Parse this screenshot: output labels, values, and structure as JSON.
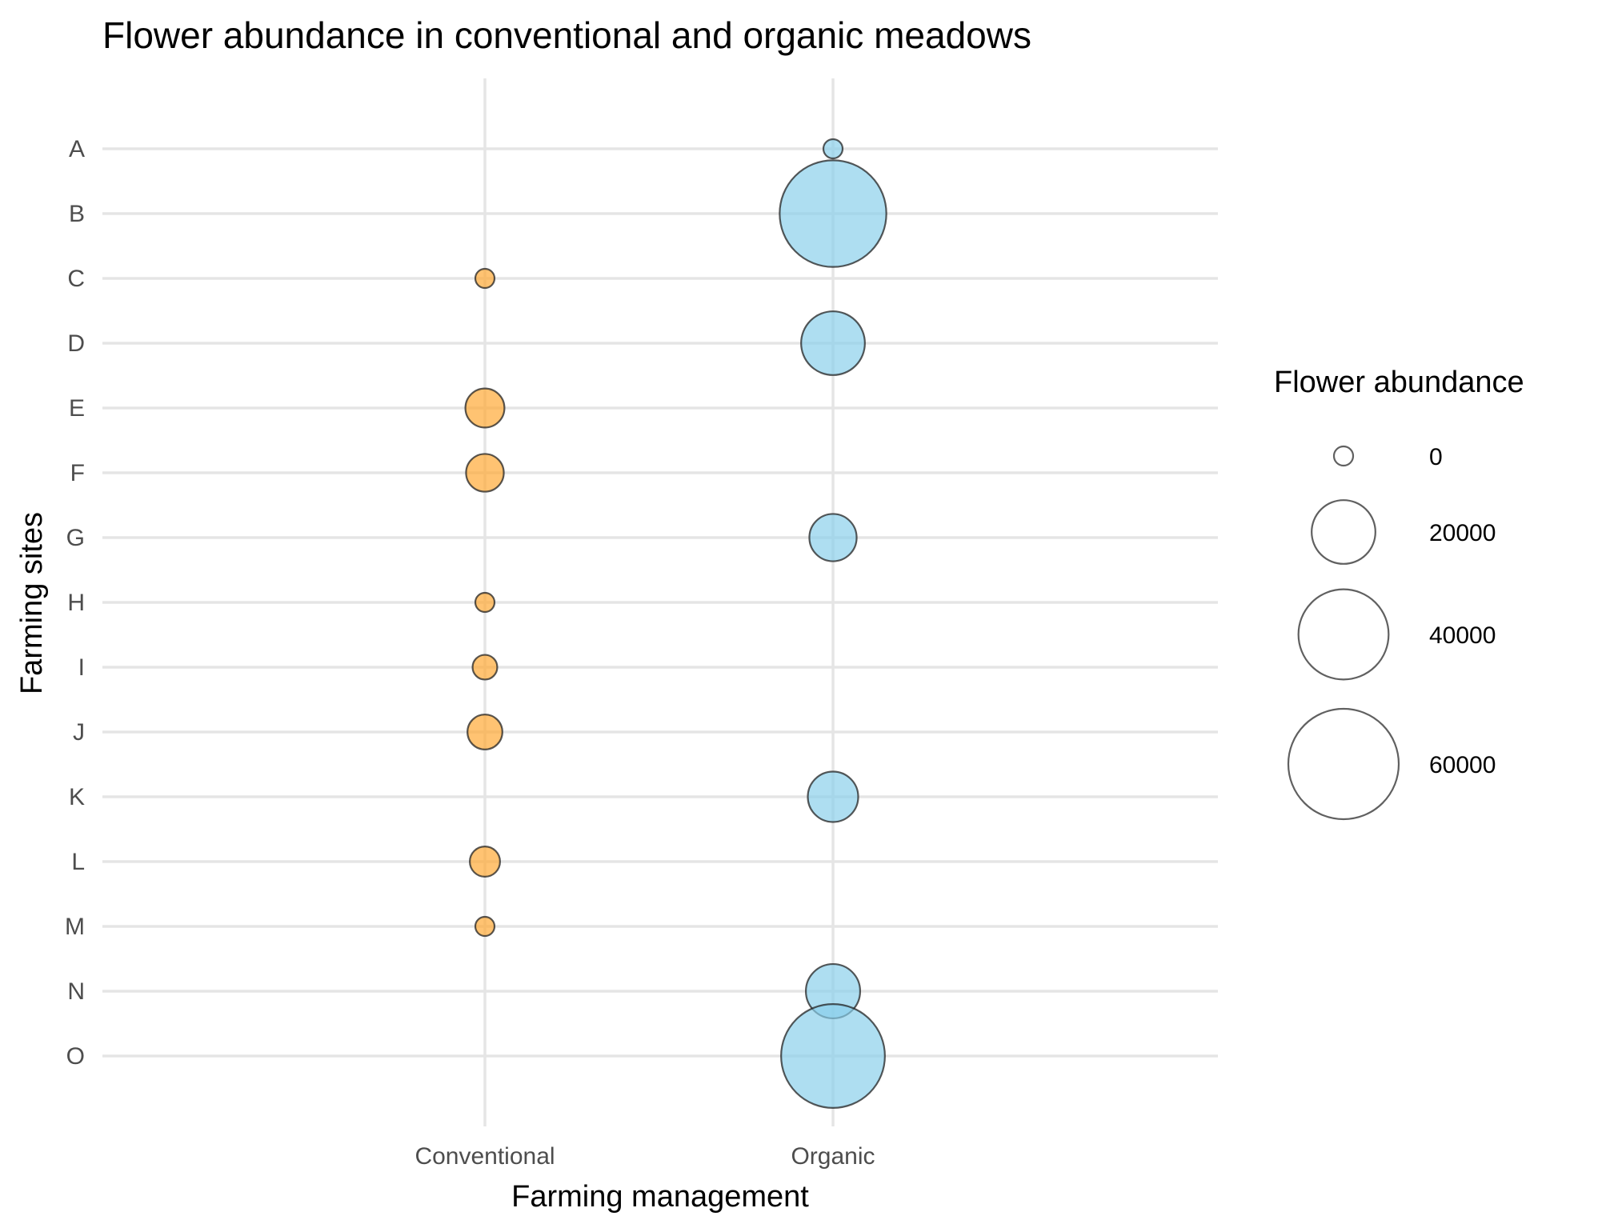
{
  "chart_data": {
    "type": "scatter",
    "title": "Flower abundance in conventional and organic meadows",
    "xlabel": "Farming management",
    "ylabel": "Farming sites",
    "x_categories": [
      "Conventional",
      "Organic"
    ],
    "y_categories": [
      "A",
      "B",
      "C",
      "D",
      "E",
      "F",
      "G",
      "H",
      "I",
      "J",
      "K",
      "L",
      "M",
      "N",
      "O"
    ],
    "size_variable": "Flower abundance",
    "colors": {
      "Conventional": "#ffa62f",
      "Organic": "#87ceeb",
      "point_outline": "#222222",
      "grid": "#e5e5e5"
    },
    "points": [
      {
        "site": "A",
        "management": "Organic",
        "abundance": 1200
      },
      {
        "site": "B",
        "management": "Organic",
        "abundance": 56000
      },
      {
        "site": "C",
        "management": "Conventional",
        "abundance": 1000
      },
      {
        "site": "D",
        "management": "Organic",
        "abundance": 20000
      },
      {
        "site": "E",
        "management": "Conventional",
        "abundance": 7500
      },
      {
        "site": "F",
        "management": "Conventional",
        "abundance": 7000
      },
      {
        "site": "G",
        "management": "Organic",
        "abundance": 11000
      },
      {
        "site": "H",
        "management": "Conventional",
        "abundance": 800
      },
      {
        "site": "I",
        "management": "Conventional",
        "abundance": 3000
      },
      {
        "site": "J",
        "management": "Conventional",
        "abundance": 6000
      },
      {
        "site": "K",
        "management": "Organic",
        "abundance": 12500
      },
      {
        "site": "L",
        "management": "Conventional",
        "abundance": 4500
      },
      {
        "site": "M",
        "management": "Conventional",
        "abundance": 800
      },
      {
        "site": "N",
        "management": "Organic",
        "abundance": 14500
      },
      {
        "site": "O",
        "management": "Organic",
        "abundance": 53000
      }
    ],
    "legend": {
      "title": "Flower abundance",
      "position": "right",
      "entries": [
        {
          "label": "0",
          "value": 0
        },
        {
          "label": "20000",
          "value": 20000
        },
        {
          "label": "40000",
          "value": 40000
        },
        {
          "label": "60000",
          "value": 60000
        }
      ]
    },
    "grid": true
  }
}
